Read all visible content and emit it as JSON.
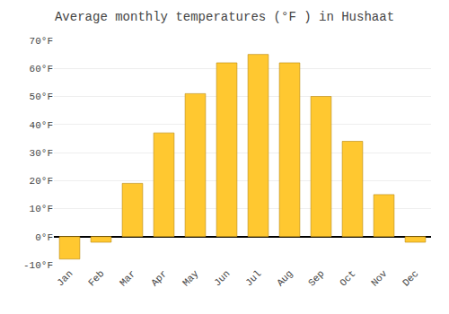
{
  "chart_data": {
    "type": "bar",
    "title": "Average monthly temperatures (°F ) in Hushaat",
    "categories": [
      "Jan",
      "Feb",
      "Mar",
      "Apr",
      "May",
      "Jun",
      "Jul",
      "Aug",
      "Sep",
      "Oct",
      "Nov",
      "Dec"
    ],
    "values": [
      -8,
      -2,
      19,
      37,
      51,
      62,
      65,
      62,
      50,
      34,
      15,
      -2
    ],
    "color": "#FFC830",
    "ylim": [
      -10,
      70
    ],
    "yticks": [
      {
        "value": -10,
        "label": "-10°F"
      },
      {
        "value": 0,
        "label": "0°F"
      },
      {
        "value": 10,
        "label": "10°F"
      },
      {
        "value": 20,
        "label": "20°F"
      },
      {
        "value": 30,
        "label": "30°F"
      },
      {
        "value": 40,
        "label": "40°F"
      },
      {
        "value": 50,
        "label": "50°F"
      },
      {
        "value": 60,
        "label": "60°F"
      },
      {
        "value": 70,
        "label": "70°F"
      }
    ],
    "grid": true
  }
}
